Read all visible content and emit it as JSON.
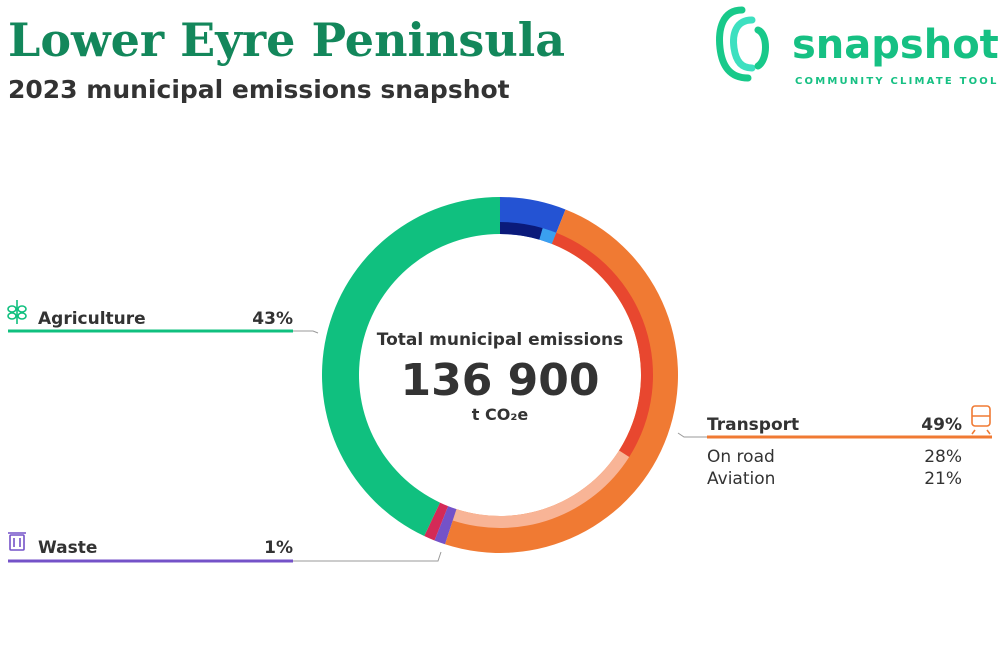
{
  "header": {
    "title": "Lower Eyre Peninsula",
    "subtitle": "2023 municipal emissions snapshot"
  },
  "logo": {
    "name": "snapshot",
    "tagline": "COMMUNITY CLIMATE TOOL"
  },
  "chart_data": {
    "type": "donut",
    "center": {
      "label": "Total municipal emissions",
      "value": "136 900",
      "unit": "t CO₂e"
    },
    "segments": [
      {
        "value": 6,
        "color": "#2453d3",
        "parts": [
          {
            "value": 4.5,
            "color": "#0a1a7a"
          },
          {
            "value": 1.5,
            "color": "#3aa0f0"
          }
        ]
      },
      {
        "name": "Transport",
        "value": 49,
        "label": "49%",
        "color": "#f07a33",
        "parts": [
          {
            "name": "On road",
            "value": 28,
            "label": "28%",
            "color": "#e8472f"
          },
          {
            "name": "Aviation",
            "value": 21,
            "label": "21%",
            "color": "#f8b496"
          }
        ]
      },
      {
        "name": "Waste",
        "value": 1,
        "label": "1%",
        "color": "#7452c8"
      },
      {
        "value": 1,
        "color": "#d42a57"
      },
      {
        "name": "Agriculture",
        "value": 43,
        "label": "43%",
        "color": "#10c07f"
      }
    ]
  }
}
